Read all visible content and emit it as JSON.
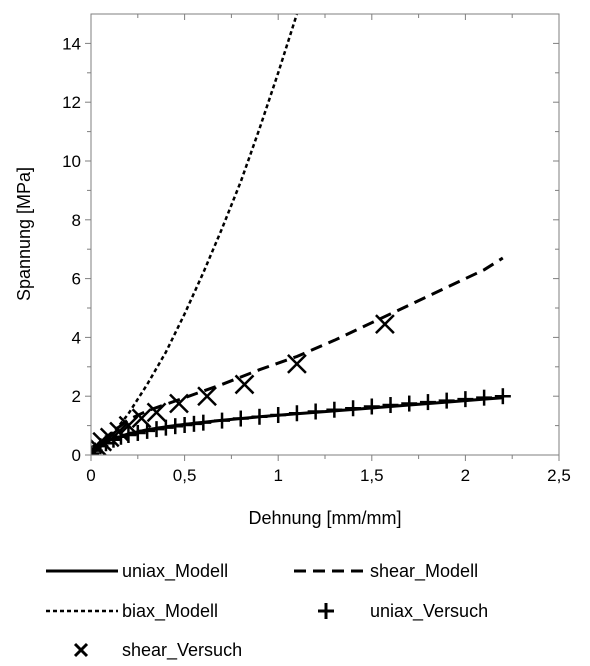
{
  "chart_data": {
    "type": "line",
    "xlabel": "Dehnung [mm/mm]",
    "ylabel": "Spannung [MPa]",
    "xlim": [
      0,
      2.5
    ],
    "ylim": [
      0,
      15
    ],
    "x_ticks": [
      "0",
      "0,5",
      "1",
      "1,5",
      "2",
      "2,5"
    ],
    "x_tick_values": [
      0,
      0.5,
      1,
      1.5,
      2,
      2.5
    ],
    "y_ticks": [
      "0",
      "2",
      "4",
      "6",
      "8",
      "10",
      "12",
      "14"
    ],
    "y_tick_values": [
      0,
      2,
      4,
      6,
      8,
      10,
      12,
      14
    ],
    "grid": false,
    "legend_placement": "bottom",
    "series": [
      {
        "name": "uniax_Modell",
        "style": "solid-line",
        "x": [
          0,
          0.05,
          0.1,
          0.2,
          0.3,
          0.4,
          0.5,
          0.7,
          0.9,
          1.1,
          1.3,
          1.5,
          1.7,
          1.9,
          2.1,
          2.2
        ],
        "y": [
          0,
          0.3,
          0.5,
          0.72,
          0.86,
          0.96,
          1.04,
          1.18,
          1.3,
          1.4,
          1.5,
          1.6,
          1.7,
          1.8,
          1.9,
          1.95
        ]
      },
      {
        "name": "shear_Modell",
        "style": "dashed-line",
        "x": [
          0,
          0.1,
          0.2,
          0.3,
          0.5,
          0.7,
          0.9,
          1.1,
          1.3,
          1.5,
          1.7,
          1.9,
          2.1,
          2.2
        ],
        "y": [
          0,
          0.7,
          1.2,
          1.5,
          1.95,
          2.4,
          2.9,
          3.35,
          3.9,
          4.5,
          5.1,
          5.7,
          6.3,
          6.7
        ]
      },
      {
        "name": "biax_Modell",
        "style": "dotted-line",
        "x": [
          0,
          0.1,
          0.2,
          0.3,
          0.4,
          0.5,
          0.6,
          0.7,
          0.8,
          0.9,
          1.0,
          1.1
        ],
        "y": [
          0,
          0.6,
          1.4,
          2.4,
          3.5,
          4.8,
          6.2,
          7.7,
          9.3,
          11.1,
          13.0,
          15.0
        ]
      },
      {
        "name": "uniax_Versuch",
        "style": "plus-marker",
        "x": [
          0,
          0.02,
          0.05,
          0.08,
          0.12,
          0.16,
          0.2,
          0.25,
          0.3,
          0.35,
          0.4,
          0.45,
          0.5,
          0.55,
          0.6,
          0.7,
          0.8,
          0.9,
          1.0,
          1.1,
          1.2,
          1.3,
          1.4,
          1.5,
          1.6,
          1.7,
          1.8,
          1.9,
          2.0,
          2.1,
          2.2
        ],
        "y": [
          0.05,
          0.15,
          0.3,
          0.4,
          0.52,
          0.62,
          0.68,
          0.75,
          0.82,
          0.88,
          0.93,
          0.98,
          1.02,
          1.06,
          1.1,
          1.17,
          1.24,
          1.3,
          1.36,
          1.42,
          1.48,
          1.54,
          1.59,
          1.65,
          1.7,
          1.75,
          1.8,
          1.85,
          1.9,
          1.95,
          2.0
        ]
      },
      {
        "name": "shear_Versuch",
        "style": "x-marker",
        "x": [
          0,
          0.03,
          0.06,
          0.1,
          0.15,
          0.2,
          0.27,
          0.35,
          0.47,
          0.62,
          0.82,
          1.1,
          1.57
        ],
        "y": [
          0.15,
          0.3,
          0.45,
          0.6,
          0.8,
          1.0,
          1.25,
          1.45,
          1.75,
          2.0,
          2.4,
          3.1,
          4.45
        ]
      }
    ]
  },
  "legend": {
    "items": [
      {
        "label": "uniax_Modell",
        "symbol": "solid-line"
      },
      {
        "label": "shear_Modell",
        "symbol": "dashed-line"
      },
      {
        "label": "biax_Modell",
        "symbol": "dotted-line"
      },
      {
        "label": "uniax_Versuch",
        "symbol": "plus-marker"
      },
      {
        "label": "shear_Versuch",
        "symbol": "x-marker"
      }
    ]
  }
}
